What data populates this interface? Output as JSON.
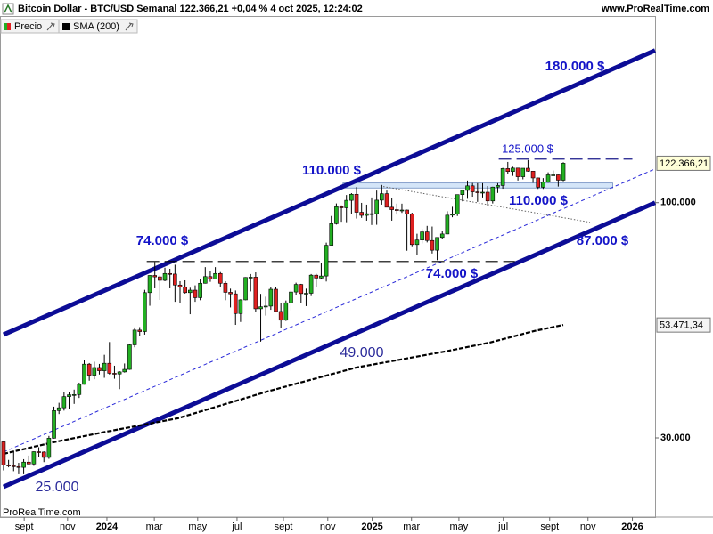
{
  "chart_data": {
    "type": "candlestick",
    "title": "Bitcoin Dollar - BTC/USD Semanal 122.366,21 +0,04 % 4 oct 2025, 12:24:02",
    "source": "www.ProRealTime.com",
    "footer": "ProRealTime.com",
    "log_scale": true,
    "xlim": [
      -0.7,
      129.2
    ],
    "ylim": [
      20000,
      260000
    ],
    "yticks": [
      {
        "value": 30000,
        "label": "30.000"
      },
      {
        "value": 100000,
        "label": "100.000"
      }
    ],
    "xticks": [
      {
        "value": 4.1,
        "label": "sept"
      },
      {
        "value": 12.7,
        "label": "nov"
      },
      {
        "value": 20.5,
        "label": "2024"
      },
      {
        "value": 29.9,
        "label": "mar"
      },
      {
        "value": 38.5,
        "label": "may"
      },
      {
        "value": 46.3,
        "label": "jul"
      },
      {
        "value": 55.5,
        "label": "sept"
      },
      {
        "value": 64.3,
        "label": "nov"
      },
      {
        "value": 73.1,
        "label": "2025"
      },
      {
        "value": 80.9,
        "label": "mar"
      },
      {
        "value": 90.3,
        "label": "may"
      },
      {
        "value": 99.1,
        "label": "jul"
      },
      {
        "value": 108.3,
        "label": "sept"
      },
      {
        "value": 115.9,
        "label": "nov"
      },
      {
        "value": 124.7,
        "label": "2026"
      }
    ],
    "series": [
      {
        "name": "Precio",
        "up_color": "#22b022",
        "down_color": "#e02020",
        "open": [
          29400,
          26100,
          26000,
          25900,
          25800,
          26500,
          26250,
          27950,
          27900,
          27150,
          29950,
          34500,
          35000,
          37050,
          37400,
          37450,
          39450,
          43750,
          41350,
          43000,
          42300,
          43950,
          41750,
          41600,
          42050,
          42600,
          48300,
          52100,
          51700,
          63100,
          68900,
          68400,
          67200,
          69600,
          69400,
          65600,
          64900,
          63100,
          63900,
          61500,
          66200,
          68500,
          67700,
          69600,
          66200,
          63200,
          62700,
          56700,
          60800,
          68200,
          68300,
          58100,
          58700,
          58900,
          64200,
          57300,
          54800,
          59900,
          63300,
          65800,
          62800,
          62900,
          69000,
          68000,
          68700,
          80400,
          89800,
          97900,
          97400,
          101200,
          104400,
          95200,
          93700,
          94500,
          94500,
          101300,
          104700,
          97700,
          96500,
          96100,
          96300,
          94300,
          80700,
          82600,
          86100,
          82400,
          78400,
          83700,
          85200,
          93800,
          94300,
          104200,
          106500,
          109000,
          105700,
          105500,
          105500,
          100900,
          108300,
          109200,
          119100,
          117300,
          119400,
          114200,
          119300,
          117500,
          113500,
          108200,
          111200,
          115300,
          115300,
          112200
        ],
        "high": [
          29500,
          26800,
          28100,
          26400,
          26900,
          27400,
          28000,
          28600,
          28000,
          30300,
          35200,
          35900,
          37900,
          37900,
          38400,
          39800,
          44700,
          44000,
          44300,
          43800,
          45900,
          49000,
          43400,
          42200,
          43900,
          48600,
          52800,
          52900,
          64000,
          69000,
          73800,
          68900,
          71700,
          71300,
          72800,
          66900,
          67200,
          64700,
          65500,
          67700,
          71900,
          70600,
          71900,
          70100,
          66900,
          64400,
          63800,
          61000,
          68300,
          69400,
          70000,
          62700,
          61800,
          65000,
          64900,
          59800,
          60600,
          64100,
          66400,
          66000,
          64400,
          69400,
          69500,
          73600,
          81500,
          93400,
          99600,
          98600,
          104000,
          105000,
          108300,
          99900,
          99000,
          102700,
          106400,
          109500,
          106400,
          102500,
          99500,
          99500,
          96500,
          95000,
          85300,
          87400,
          88800,
          88500,
          83500,
          86500,
          95700,
          97900,
          104300,
          106800,
          112000,
          110600,
          110500,
          110500,
          108900,
          108500,
          110500,
          119500,
          123200,
          120200,
          119500,
          119300,
          124400,
          117600,
          113700,
          113400,
          116800,
          117900,
          115400,
          123000
        ],
        "low": [
          25400,
          25800,
          25300,
          24900,
          24900,
          26200,
          26000,
          27200,
          26500,
          26950,
          29900,
          33900,
          34500,
          34800,
          35700,
          36800,
          39400,
          40200,
          40500,
          41500,
          40800,
          41500,
          40600,
          38500,
          41900,
          42500,
          47700,
          50600,
          50900,
          59000,
          64500,
          60800,
          66900,
          64500,
          60200,
          59700,
          62800,
          56500,
          60200,
          60700,
          66100,
          66700,
          67600,
          64900,
          60700,
          58500,
          53500,
          54300,
          60700,
          63500,
          57200,
          49100,
          56100,
          57800,
          57200,
          52600,
          54600,
          57500,
          62400,
          59800,
          58900,
          62000,
          65000,
          67500,
          66800,
          80300,
          89400,
          90700,
          90500,
          94200,
          92200,
          92500,
          91200,
          89200,
          89300,
          99000,
          97700,
          91200,
          94100,
          94900,
          78200,
          80000,
          76600,
          81200,
          81600,
          77100,
          74500,
          83000,
          85100,
          92800,
          93400,
          100700,
          102000,
          103100,
          100400,
          102700,
          98200,
          99600,
          105100,
          107400,
          115700,
          114700,
          112000,
          112700,
          117200,
          110700,
          107300,
          107300,
          110800,
          114800,
          108600,
          111600
        ],
        "close": [
          26100,
          26000,
          25900,
          25800,
          26500,
          26250,
          27950,
          27900,
          27150,
          29950,
          34500,
          35000,
          37050,
          37400,
          37450,
          39450,
          43750,
          41350,
          43000,
          42300,
          43950,
          41750,
          41600,
          42050,
          42600,
          48300,
          52100,
          51700,
          63100,
          68900,
          68400,
          67200,
          69600,
          69400,
          65600,
          64900,
          63100,
          63900,
          61500,
          66200,
          68500,
          67700,
          69600,
          66200,
          63200,
          62700,
          56700,
          60800,
          68200,
          68300,
          58100,
          58700,
          58900,
          64200,
          57300,
          54800,
          59900,
          63300,
          65800,
          62800,
          62900,
          69000,
          68000,
          68700,
          80400,
          89800,
          97900,
          97400,
          101200,
          104400,
          95200,
          93700,
          94500,
          94500,
          101300,
          104700,
          97700,
          96500,
          96100,
          96300,
          94300,
          80700,
          82600,
          86100,
          82400,
          78400,
          83700,
          85200,
          93800,
          94300,
          104200,
          106500,
          109000,
          105700,
          105500,
          105500,
          100900,
          108300,
          109200,
          119100,
          117300,
          119400,
          114200,
          119300,
          117500,
          113500,
          108200,
          111200,
          115300,
          115300,
          112200,
          122366.21
        ]
      },
      {
        "name": "SMA (200)",
        "color": "#000000",
        "x": [
          0,
          9.9,
          20.5,
          34.6,
          52.3,
          70,
          87.6,
          96.5,
          105.3,
          111
        ],
        "values": [
          27650,
          29340,
          30990,
          33180,
          38040,
          43020,
          46700,
          48880,
          51880,
          53471.34
        ]
      }
    ],
    "price_labels": [
      {
        "value": 122366.21,
        "label": "122.366,21",
        "color": "#ffffd8"
      },
      {
        "value": 53471.34,
        "label": "53.471,34",
        "color": "#f4f4f4"
      }
    ],
    "trendlines": [
      {
        "points": [
          [
            0,
            50900
          ],
          [
            129.2,
            218000
          ]
        ],
        "color": "#0c0c96",
        "style": "solid"
      },
      {
        "points": [
          [
            0,
            23350
          ],
          [
            129.2,
            100000
          ]
        ],
        "color": "#0c0c96",
        "style": "solid"
      },
      {
        "points": [
          [
            0,
            27900
          ],
          [
            129.2,
            118900
          ]
        ],
        "color": "#2828d8",
        "style": "dashed"
      },
      {
        "points": [
          [
            75.3,
            108600
          ],
          [
            116.3,
            90450
          ]
        ],
        "color": "#666666",
        "style": "dotted"
      },
      {
        "points": [
          [
            28.4,
            74000
          ],
          [
            101.4,
            74000
          ]
        ],
        "color": "#000000",
        "style": "longdash"
      },
      {
        "points": [
          [
            98.2,
            125000
          ],
          [
            124.7,
            125000
          ]
        ],
        "color": "#1a1a8a",
        "style": "longdash"
      }
    ],
    "zones": [
      {
        "x": [
          67.3,
          120.8
        ],
        "y": [
          107800,
          110600
        ],
        "color": "#b8d4f4"
      }
    ],
    "annotations": [
      "180.000 $",
      "125.000 $",
      "110.000 $",
      "110.000 $",
      "74.000 $",
      "74.000 $",
      "87.000 $",
      "49.000",
      "25.000"
    ]
  }
}
